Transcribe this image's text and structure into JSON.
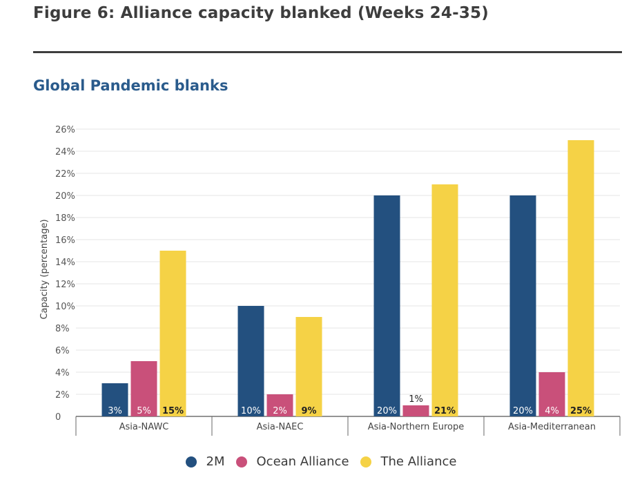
{
  "figure_title": "Figure 6: Alliance capacity blanked (Weeks 24-35)",
  "subtitle": "Global Pandemic blanks",
  "chart_data": {
    "type": "bar",
    "title": "Global Pandemic blanks",
    "xlabel": "",
    "ylabel": "Capacity (percentage)",
    "ylim": [
      0,
      26
    ],
    "yticks": [
      0,
      2,
      4,
      6,
      8,
      10,
      12,
      14,
      16,
      18,
      20,
      22,
      24,
      26
    ],
    "ytick_labels": [
      "0",
      "2%",
      "4%",
      "6%",
      "8%",
      "10%",
      "12%",
      "14%",
      "16%",
      "18%",
      "20%",
      "22%",
      "24%",
      "26%"
    ],
    "grid": true,
    "legend_position": "bottom-center",
    "categories": [
      "Asia-NAWC",
      "Asia-NAEC",
      "Asia-Northern Europe",
      "Asia-Mediterranean"
    ],
    "series": [
      {
        "name": "2M",
        "color": "#23507f",
        "values": [
          3,
          10,
          20,
          20
        ],
        "labels": [
          "3%",
          "10%",
          "20%",
          "20%"
        ]
      },
      {
        "name": "Ocean Alliance",
        "color": "#c9507a",
        "values": [
          5,
          2,
          1,
          4
        ],
        "labels": [
          "5%",
          "2%",
          "1%",
          "4%"
        ]
      },
      {
        "name": "The Alliance",
        "color": "#f5d246",
        "values": [
          15,
          9,
          21,
          25
        ],
        "labels": [
          "15%",
          "9%",
          "21%",
          "25%"
        ]
      }
    ]
  }
}
